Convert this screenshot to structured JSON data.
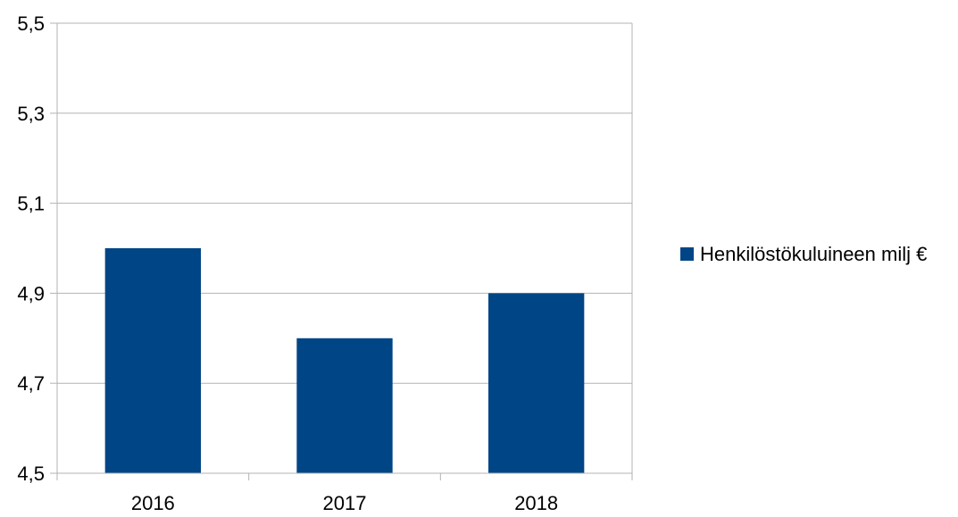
{
  "chart_data": {
    "type": "bar",
    "categories": [
      "2016",
      "2017",
      "2018"
    ],
    "series": [
      {
        "name": "Henkilöstökuluineen milj €",
        "values": [
          5.0,
          4.8,
          4.9
        ],
        "color": "#004586"
      }
    ],
    "ylim": [
      4.5,
      5.5
    ],
    "yticks": [
      "4,5",
      "4,7",
      "4,9",
      "5,1",
      "5,3",
      "5,5"
    ],
    "ytick_values": [
      4.5,
      4.7,
      4.9,
      5.1,
      5.3,
      5.5
    ],
    "grid": true,
    "legend_position": "right",
    "gridline_color": "#b3b3b3",
    "axis_color": "#b3b3b3"
  }
}
